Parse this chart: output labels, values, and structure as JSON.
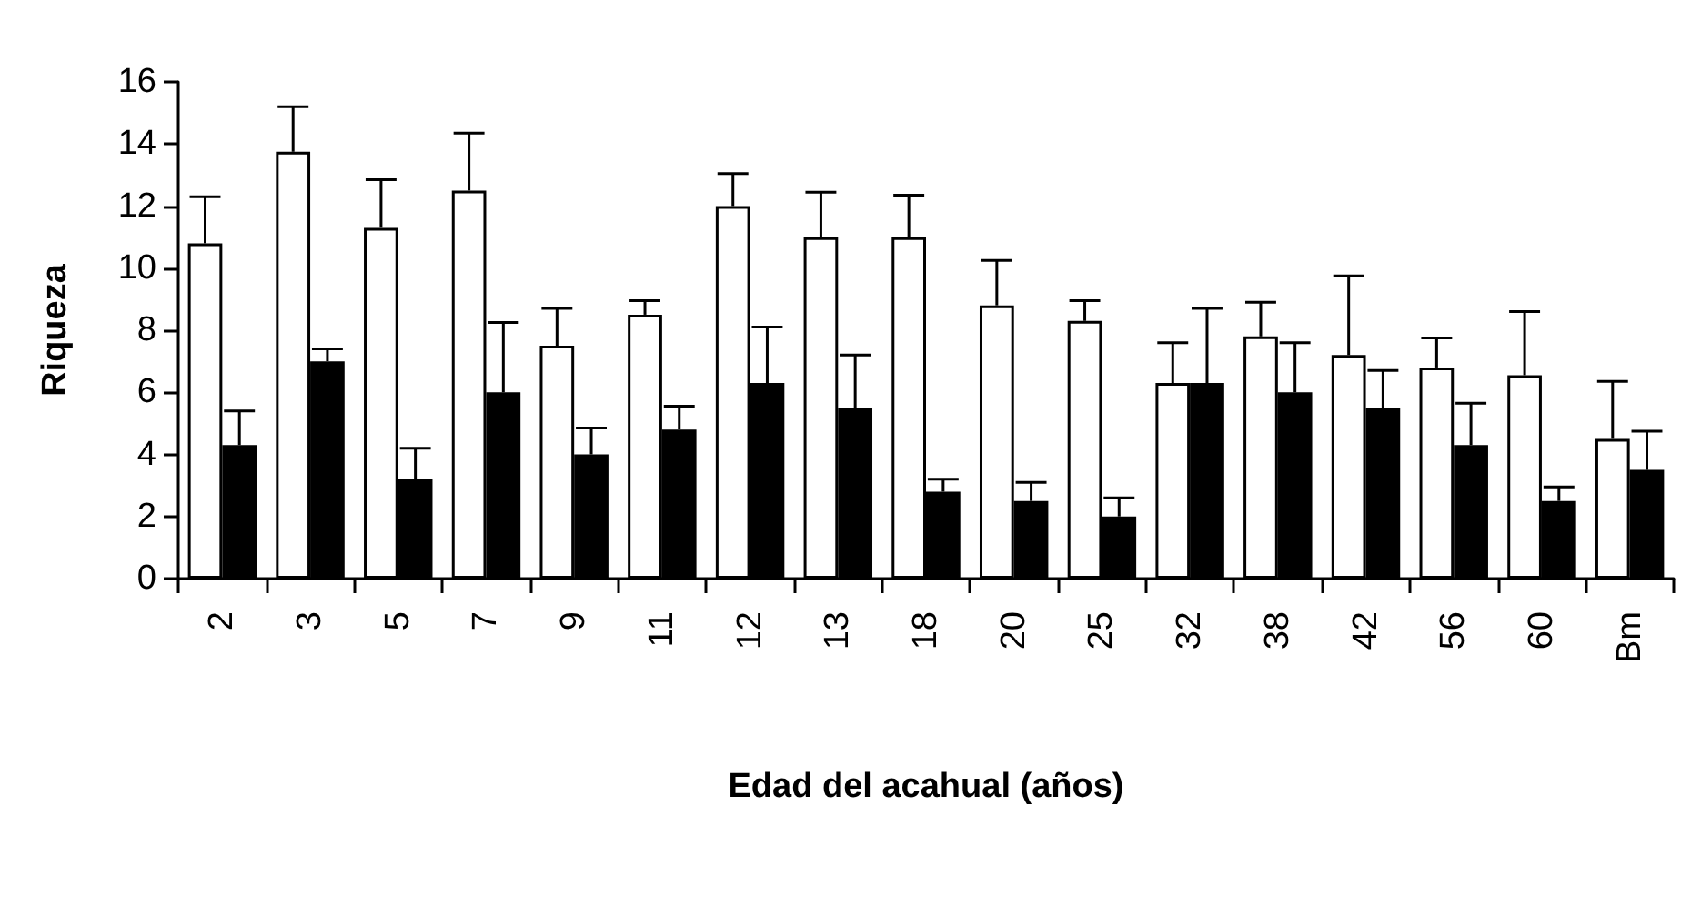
{
  "chart_data": {
    "type": "bar",
    "xlabel": "Edad del acahual (años)",
    "ylabel": "Riqueza",
    "categories": [
      "2",
      "3",
      "5",
      "7",
      "9",
      "11",
      "12",
      "13",
      "18",
      "20",
      "25",
      "32",
      "38",
      "42",
      "56",
      "60",
      "Bm"
    ],
    "series": [
      {
        "color": "#ffffff",
        "values": [
          10.8,
          13.75,
          11.3,
          12.5,
          7.5,
          8.5,
          12,
          11,
          11,
          8.8,
          8.3,
          6.3,
          7.8,
          7.2,
          6.8,
          6.55,
          4.5
        ],
        "errors": [
          [
            10.8,
            12.3
          ],
          [
            13.75,
            15.2
          ],
          [
            11.3,
            12.85
          ],
          [
            12.5,
            14.35
          ],
          [
            7.5,
            8.7
          ],
          [
            8.5,
            8.95
          ],
          [
            12,
            13.05
          ],
          [
            11,
            12.45
          ],
          [
            11,
            12.35
          ],
          [
            8.8,
            10.25
          ],
          [
            8.3,
            8.95
          ],
          [
            6.3,
            7.6
          ],
          [
            7.8,
            8.9
          ],
          [
            7.2,
            9.75
          ],
          [
            6.8,
            7.75
          ],
          [
            6.55,
            8.6
          ],
          [
            4.5,
            6.35
          ]
        ]
      },
      {
        "color": "#000000",
        "values": [
          4.3,
          7,
          3.2,
          6,
          4,
          4.8,
          6.3,
          5.5,
          2.8,
          2.5,
          2,
          6.3,
          6,
          5.5,
          4.3,
          2.5,
          3.5
        ],
        "errors": [
          [
            4.3,
            5.4
          ],
          [
            7,
            7.4
          ],
          [
            3.2,
            4.2
          ],
          [
            6,
            8.25
          ],
          [
            4,
            4.85
          ],
          [
            4.8,
            5.55
          ],
          [
            6.3,
            8.1
          ],
          [
            5.5,
            7.2
          ],
          [
            2.8,
            3.2
          ],
          [
            2.5,
            3.1
          ],
          [
            2,
            2.6
          ],
          [
            6.3,
            8.7
          ],
          [
            6,
            7.6
          ],
          [
            5.5,
            6.7
          ],
          [
            4.3,
            5.65
          ],
          [
            2.5,
            2.95
          ],
          [
            3.5,
            4.75
          ]
        ]
      }
    ],
    "ylim": [
      0,
      16
    ],
    "yticks": [
      0,
      2,
      4,
      6,
      8,
      10,
      12,
      14,
      16
    ],
    "grid": false
  }
}
